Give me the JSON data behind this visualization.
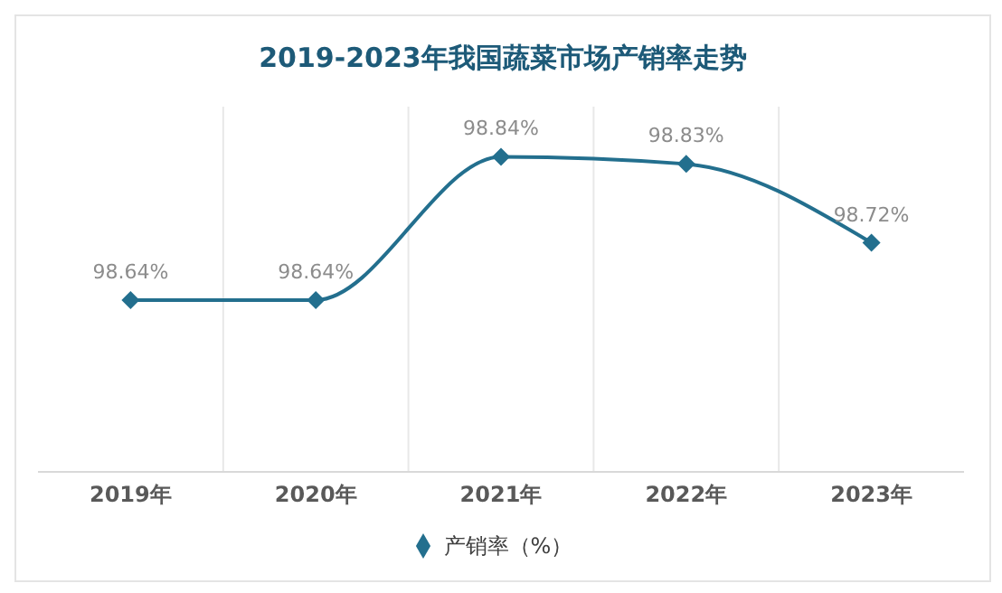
{
  "chart_data": {
    "type": "line",
    "title": "2019-2023年我国蔬菜市场产销率走势",
    "categories": [
      "2019年",
      "2020年",
      "2021年",
      "2022年",
      "2023年"
    ],
    "series": [
      {
        "name": "产销率（%）",
        "color": "#236f8e",
        "values": [
          98.64,
          98.64,
          98.84,
          98.83,
          98.72
        ],
        "value_labels": [
          "98.64%",
          "98.64%",
          "98.84%",
          "98.83%",
          "98.72%"
        ]
      }
    ],
    "marker": "diamond",
    "grid": "x",
    "legend": "bottom"
  }
}
